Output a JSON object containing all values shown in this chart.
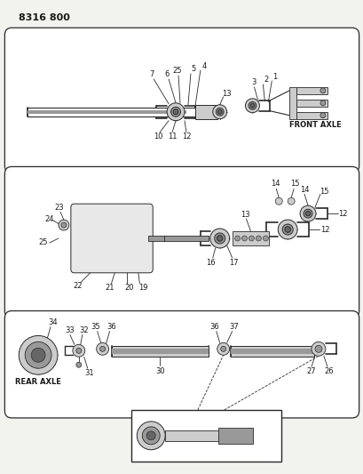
{
  "bg_color": "#f2f2ee",
  "title_text": "8316 800",
  "line_color": "#2a2a2a",
  "text_color": "#1a1a1a",
  "part_color": "#555555",
  "light_gray": "#cccccc",
  "mid_gray": "#999999",
  "dark_gray": "#666666"
}
